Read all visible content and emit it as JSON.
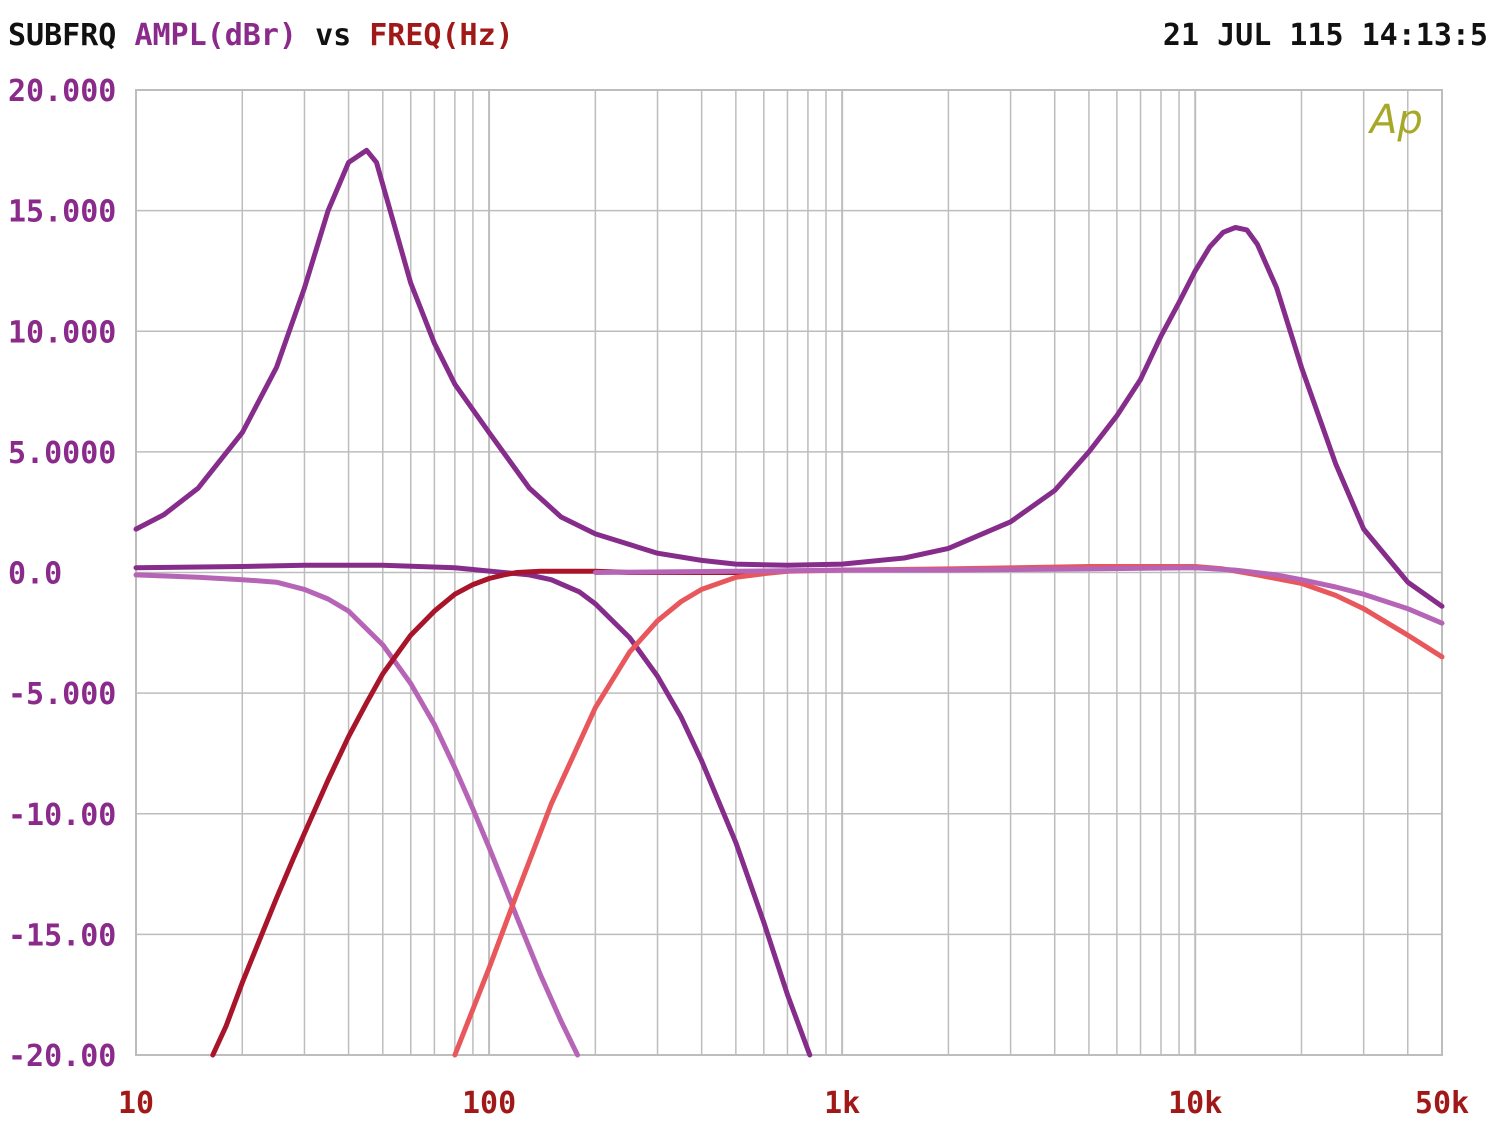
{
  "header": {
    "prefix": "SUBFRQ",
    "ylabel": "AMPL(dBr)",
    "vs": "vs",
    "xlabel": "FREQ(Hz)",
    "timestamp": "21 JUL 115 14:13:5"
  },
  "logo": "Ap",
  "colors": {
    "prefix": "#111111",
    "ylabel": "#8a2a8a",
    "xlabel": "#a01818",
    "grid": "#bdbdbd",
    "logo": "#a8a828"
  },
  "chart_data": {
    "type": "line",
    "xscale": "log",
    "xlim": [
      10,
      50000
    ],
    "ylim": [
      -20,
      20
    ],
    "grid": true,
    "yticks": [
      {
        "value": 20,
        "label": "20.000"
      },
      {
        "value": 15,
        "label": "15.000"
      },
      {
        "value": 10,
        "label": "10.000"
      },
      {
        "value": 5,
        "label": "5.0000"
      },
      {
        "value": 0,
        "label": "0.0"
      },
      {
        "value": -5,
        "label": "-5.000"
      },
      {
        "value": -10,
        "label": "-10.00"
      },
      {
        "value": -15,
        "label": "-15.00"
      },
      {
        "value": -20,
        "label": "-20.00"
      }
    ],
    "xticks": [
      {
        "value": 10,
        "label": "10"
      },
      {
        "value": 100,
        "label": "100"
      },
      {
        "value": 1000,
        "label": "1k"
      },
      {
        "value": 10000,
        "label": "10k"
      },
      {
        "value": 50000,
        "label": "50k"
      }
    ],
    "series": [
      {
        "color": "#862d8c",
        "x": [
          10,
          12,
          15,
          20,
          25,
          30,
          35,
          40,
          45,
          48,
          52,
          60,
          70,
          80,
          100,
          130,
          160,
          200,
          300,
          400,
          500,
          700,
          1000,
          1500,
          2000,
          3000,
          4000,
          5000,
          6000,
          7000,
          8000,
          9000,
          10000,
          11000,
          12000,
          13000,
          14000,
          15000,
          17000,
          20000,
          25000,
          30000,
          40000,
          50000
        ],
        "y": [
          1.8,
          2.4,
          3.5,
          5.8,
          8.5,
          11.8,
          15.0,
          17.0,
          17.5,
          17.0,
          15.2,
          12.0,
          9.5,
          7.8,
          5.8,
          3.5,
          2.3,
          1.6,
          0.8,
          0.5,
          0.35,
          0.3,
          0.35,
          0.6,
          1.0,
          2.1,
          3.4,
          5.0,
          6.5,
          8.0,
          9.8,
          11.2,
          12.5,
          13.5,
          14.1,
          14.3,
          14.2,
          13.6,
          11.8,
          8.5,
          4.5,
          1.8,
          -0.4,
          -1.4
        ]
      },
      {
        "color": "#862d8c",
        "x": [
          10,
          20,
          30,
          50,
          80,
          110,
          130,
          150,
          180,
          200,
          250,
          300,
          350,
          400,
          500,
          600,
          700,
          810
        ],
        "y": [
          0.2,
          0.25,
          0.3,
          0.3,
          0.2,
          0.0,
          -0.1,
          -0.3,
          -0.8,
          -1.3,
          -2.7,
          -4.3,
          -6.0,
          -7.8,
          -11.2,
          -14.5,
          -17.5,
          -20.0
        ]
      },
      {
        "color": "#b665b6",
        "x": [
          10,
          15,
          20,
          25,
          30,
          35,
          40,
          50,
          60,
          70,
          80,
          90,
          100,
          110,
          120,
          140,
          160,
          178
        ],
        "y": [
          -0.1,
          -0.2,
          -0.3,
          -0.4,
          -0.7,
          -1.1,
          -1.6,
          -3.0,
          -4.6,
          -6.3,
          -8.1,
          -9.8,
          -11.4,
          -12.9,
          -14.3,
          -16.7,
          -18.6,
          -20.0
        ]
      },
      {
        "color": "#a8142a",
        "x": [
          16.5,
          18,
          20,
          22,
          25,
          28,
          30,
          35,
          40,
          45,
          50,
          60,
          70,
          80,
          90,
          100,
          110,
          120,
          140,
          160,
          200,
          250,
          300,
          400,
          500,
          600
        ],
        "y": [
          -20.0,
          -18.8,
          -17.0,
          -15.5,
          -13.5,
          -11.8,
          -10.8,
          -8.6,
          -6.8,
          -5.4,
          -4.2,
          -2.6,
          -1.6,
          -0.9,
          -0.5,
          -0.25,
          -0.1,
          0.0,
          0.05,
          0.05,
          0.05,
          0.0,
          0.0,
          0.0,
          0.0,
          0.05
        ]
      },
      {
        "color": "#e8575c",
        "x": [
          80,
          100,
          120,
          150,
          200,
          250,
          300,
          350,
          400,
          500,
          600,
          700,
          1000,
          2000,
          5000,
          10000,
          12000,
          15000,
          20000,
          25000,
          30000,
          40000,
          50000
        ],
        "y": [
          -20.0,
          -16.4,
          -13.3,
          -9.6,
          -5.6,
          -3.3,
          -2.0,
          -1.2,
          -0.7,
          -0.2,
          -0.05,
          0.05,
          0.1,
          0.15,
          0.25,
          0.25,
          0.15,
          -0.1,
          -0.45,
          -0.95,
          -1.5,
          -2.6,
          -3.5
        ]
      },
      {
        "color": "#b665b6",
        "x": [
          200,
          500,
          1000,
          2000,
          5000,
          10000,
          13000,
          17000,
          20000,
          25000,
          30000,
          40000,
          50000
        ],
        "y": [
          0.0,
          0.05,
          0.1,
          0.1,
          0.15,
          0.2,
          0.1,
          -0.1,
          -0.3,
          -0.6,
          -0.9,
          -1.5,
          -2.1
        ]
      }
    ]
  }
}
